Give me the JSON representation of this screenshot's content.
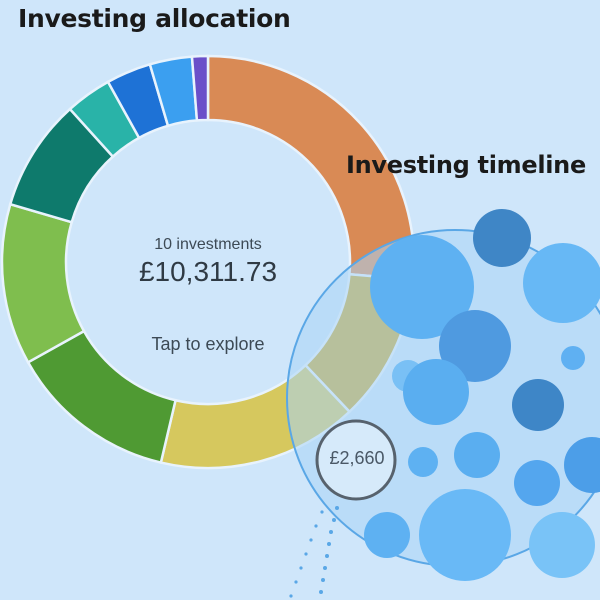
{
  "allocation": {
    "title": "Investing allocation",
    "count_label": "10 investments",
    "total": "£10,311.73",
    "cta": "Tap to explore",
    "segments": [
      {
        "color": "#d98a55",
        "fraction": 0.255
      },
      {
        "color": "#c8a92f",
        "fraction": 0.112
      },
      {
        "color": "#d6c85e",
        "fraction": 0.152
      },
      {
        "color": "#4f9a33",
        "fraction": 0.128
      },
      {
        "color": "#7fbe4e",
        "fraction": 0.122
      },
      {
        "color": "#0e7a6c",
        "fraction": 0.085
      },
      {
        "color": "#29b3a8",
        "fraction": 0.035
      },
      {
        "color": "#1e72d6",
        "fraction": 0.034
      },
      {
        "color": "#3b9ff0",
        "fraction": 0.032
      },
      {
        "color": "#6a4fc9",
        "fraction": 0.012
      }
    ]
  },
  "timeline": {
    "title": "Investing timeline",
    "selected_amount": "£2,660"
  }
}
